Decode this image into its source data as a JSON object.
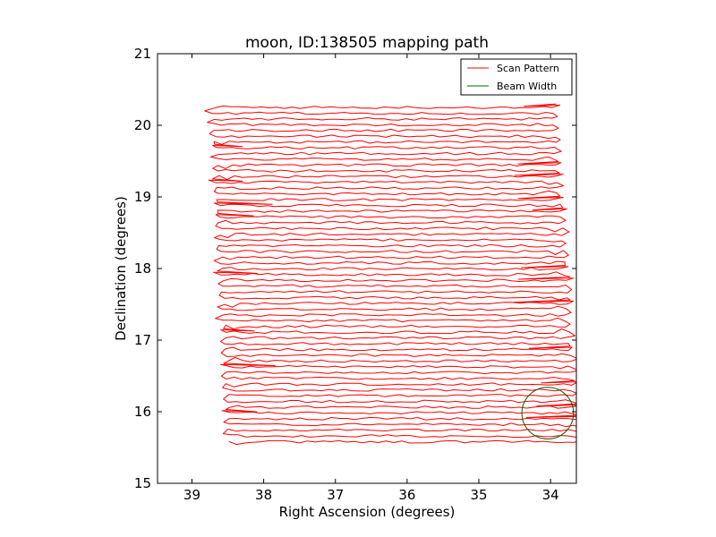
{
  "chart_data": {
    "type": "line",
    "title": "moon, ID:138505 mapping path",
    "xlabel": "Right Ascension (degrees)",
    "ylabel": "Declination (degrees)",
    "xlim": [
      39.48,
      33.64
    ],
    "ylim": [
      15,
      21
    ],
    "xaxis_reversed": true,
    "xticks": [
      39,
      38,
      37,
      36,
      35,
      34
    ],
    "yticks": [
      15,
      16,
      17,
      18,
      19,
      20,
      21
    ],
    "grid": false,
    "legend_position": "top-right",
    "series": [
      {
        "name": "Scan Pattern",
        "color": "#ff0000",
        "kind": "raster",
        "dec_start": 15.58,
        "dec_end": 20.25,
        "line_count": 59,
        "ra_left_start": 38.47,
        "ra_left_end": 38.69,
        "ra_right_start": 33.66,
        "ra_right_end": 33.97
      },
      {
        "name": "Beam Width",
        "color": "#006400",
        "kind": "circle",
        "center": [
          34.04,
          15.98
        ],
        "radius_deg": 0.36
      }
    ]
  }
}
